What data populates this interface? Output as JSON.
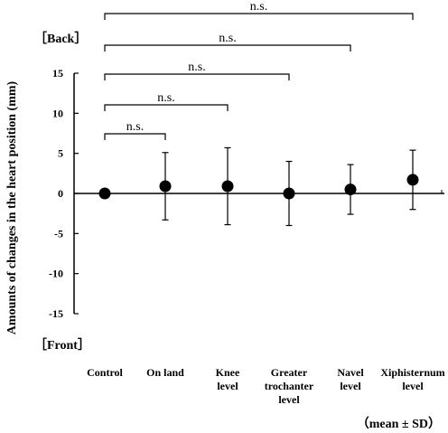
{
  "chart_data": {
    "type": "scatter",
    "ylabel": "Amounts of changes in the heart position (mm)",
    "categories": [
      "Control",
      "On land",
      "Knee level",
      "Greater trochanter level",
      "Navel level",
      "Xiphisternum level"
    ],
    "category_lines": [
      [
        "Control"
      ],
      [
        "On land"
      ],
      [
        "Knee",
        "level"
      ],
      [
        "Greater",
        "trochanter",
        "level"
      ],
      [
        "Navel",
        "level"
      ],
      [
        "Xiphisternum",
        "level"
      ]
    ],
    "series": [
      {
        "values": [
          0,
          0.9,
          0.9,
          0,
          0.5,
          1.7
        ],
        "sd": [
          0,
          4.2,
          4.8,
          4.0,
          3.1,
          3.7
        ]
      }
    ],
    "ylim": [
      -15,
      15
    ],
    "yticks": [
      15,
      10,
      5,
      0,
      -5,
      -10,
      -15
    ],
    "ytick_labels": [
      "15",
      "10",
      "5",
      "0",
      "-5",
      "-10",
      "-15"
    ],
    "grid": false,
    "annotations": {
      "back_label": "［Back］",
      "front_label": "［Front］",
      "footnote": "（mean ± SD）"
    },
    "significance": [
      {
        "from": "Control",
        "to": "On land",
        "label": "n.s."
      },
      {
        "from": "Control",
        "to": "Knee level",
        "label": "n.s."
      },
      {
        "from": "Control",
        "to": "Greater trochanter level",
        "label": "n.s."
      },
      {
        "from": "Control",
        "to": "Navel level",
        "label": "n.s."
      },
      {
        "from": "Control",
        "to": "Xiphisternum level",
        "label": "n.s."
      }
    ]
  }
}
